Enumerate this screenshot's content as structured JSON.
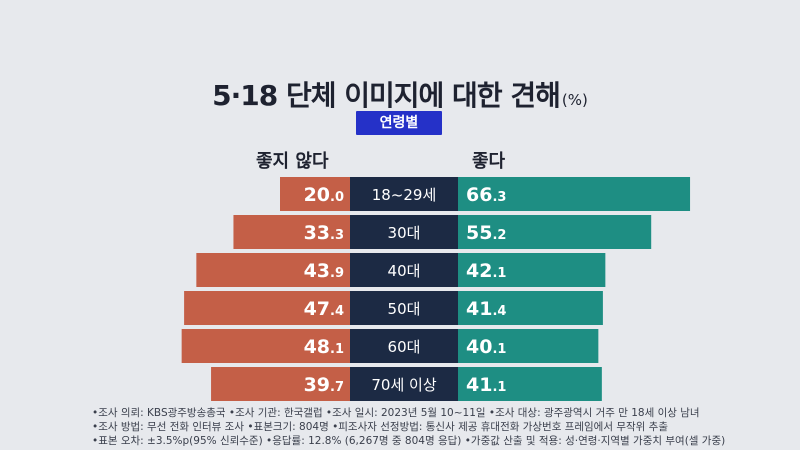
{
  "title": {
    "main": "5·18 단체 이미지에 대한 견해",
    "unit": "(%)"
  },
  "badge": "연령별",
  "chart_data": {
    "type": "bar",
    "layout": "diverging-horizontal",
    "categories": [
      "18~29세",
      "30대",
      "40대",
      "50대",
      "60대",
      "70세 이상"
    ],
    "series": [
      {
        "name": "좋지 않다",
        "color": "#c45f47",
        "values": [
          20.0,
          33.3,
          43.9,
          47.4,
          48.1,
          39.7
        ]
      },
      {
        "name": "좋다",
        "color": "#1e8e83",
        "values": [
          66.3,
          55.2,
          42.1,
          41.4,
          40.1,
          41.1
        ]
      }
    ],
    "label_bg_color": "#1c2a44"
  },
  "footnotes": [
    "•조사 의뢰: KBS광주방송총국   •조사 기관: 한국갤럽   •조사 일시: 2023년 5월 10~11일   •조사 대상: 광주광역시 거주 만 18세 이상 남녀",
    "•조사 방법: 무선 전화 인터뷰 조사   •표본크기: 804명   •피조사자 선정방법: 통신사 제공 휴대전화 가상번호 프레임에서 무작위 추출",
    "•표본 오차: ±3.5%p(95% 신뢰수준)   •응답률: 12.8% (6,267명 중 804명 응답)   •가중값 산출 및 적용: 성·연령·지역별 가중치 부여(셀 가중)"
  ]
}
